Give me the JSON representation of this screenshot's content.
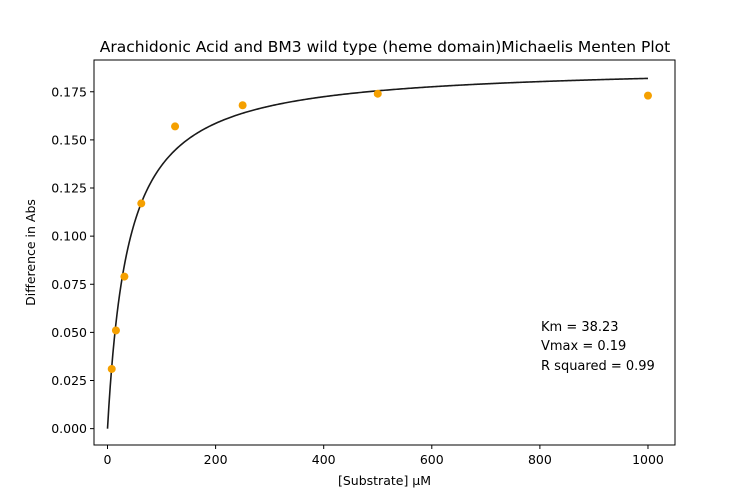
{
  "chart_data": {
    "type": "scatter",
    "title": "Arachidonic Acid and BM3 wild type (heme domain)Michaelis Menten Plot",
    "xlabel": "[Substrate] µM",
    "ylabel": "Difference in Abs",
    "xlim": [
      -25,
      1050
    ],
    "ylim": [
      -0.0085,
      0.1915
    ],
    "xticks": [
      0,
      200,
      400,
      600,
      800,
      1000
    ],
    "yticks": [
      0.0,
      0.025,
      0.05,
      0.075,
      0.1,
      0.125,
      0.15,
      0.175
    ],
    "xtick_labels": [
      "0",
      "200",
      "400",
      "600",
      "800",
      "1000"
    ],
    "ytick_labels": [
      "0.000",
      "0.025",
      "0.050",
      "0.075",
      "0.100",
      "0.125",
      "0.150",
      "0.175"
    ],
    "grid": false,
    "series": [
      {
        "kind": "scatter",
        "color": "#f5a000",
        "x": [
          7.8,
          15.6,
          31.25,
          62.5,
          125,
          250,
          500,
          1000
        ],
        "y": [
          0.031,
          0.051,
          0.079,
          0.117,
          0.157,
          0.168,
          0.174,
          0.173
        ]
      },
      {
        "kind": "fit-curve",
        "color": "#1a1a1a",
        "model": "michaelis-menten",
        "km": 38.23,
        "vmax": 0.1889,
        "x_range": [
          0,
          1000
        ]
      }
    ],
    "annotations": [
      "Km = 38.23",
      "Vmax = 0.19",
      "R squared = 0.99"
    ]
  }
}
